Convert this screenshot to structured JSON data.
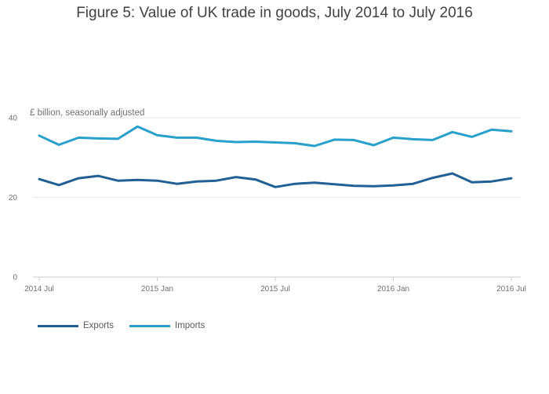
{
  "chart_data": {
    "type": "line",
    "title": "Figure 5: Value of UK trade in goods, July 2014 to July 2016",
    "ylabel": "£ billion, seasonally adjusted",
    "xlabel": "",
    "ylim": [
      0,
      40
    ],
    "yticks": [
      "0",
      "20",
      "40"
    ],
    "xticks": [
      {
        "label": "2014 Jul",
        "index": 0
      },
      {
        "label": "2015 Jan",
        "index": 6
      },
      {
        "label": "2015 Jul",
        "index": 12
      },
      {
        "label": "2016 Jan",
        "index": 18
      },
      {
        "label": "2016 Jul",
        "index": 24
      }
    ],
    "x": [
      "2014 Jul",
      "2014 Aug",
      "2014 Sep",
      "2014 Oct",
      "2014 Nov",
      "2014 Dec",
      "2015 Jan",
      "2015 Feb",
      "2015 Mar",
      "2015 Apr",
      "2015 May",
      "2015 Jun",
      "2015 Jul",
      "2015 Aug",
      "2015 Sep",
      "2015 Oct",
      "2015 Nov",
      "2015 Dec",
      "2016 Jan",
      "2016 Feb",
      "2016 Mar",
      "2016 Apr",
      "2016 May",
      "2016 Jun",
      "2016 Jul"
    ],
    "series": [
      {
        "name": "Exports",
        "color": "#206095",
        "values": [
          24.6,
          23.1,
          24.8,
          25.4,
          24.2,
          24.4,
          24.2,
          23.4,
          24.0,
          24.2,
          25.1,
          24.5,
          22.6,
          23.4,
          23.7,
          23.3,
          22.9,
          22.8,
          23.0,
          23.4,
          24.9,
          26.0,
          23.8,
          24.0,
          24.8
        ]
      },
      {
        "name": "Imports",
        "color": "#27a0cc",
        "values": [
          35.5,
          33.2,
          35.0,
          34.8,
          34.7,
          37.8,
          35.6,
          35.0,
          35.0,
          34.2,
          33.9,
          34.0,
          33.8,
          33.6,
          32.9,
          34.5,
          34.4,
          33.1,
          35.0,
          34.6,
          34.4,
          36.4,
          35.2,
          37.0,
          36.6
        ]
      }
    ]
  }
}
